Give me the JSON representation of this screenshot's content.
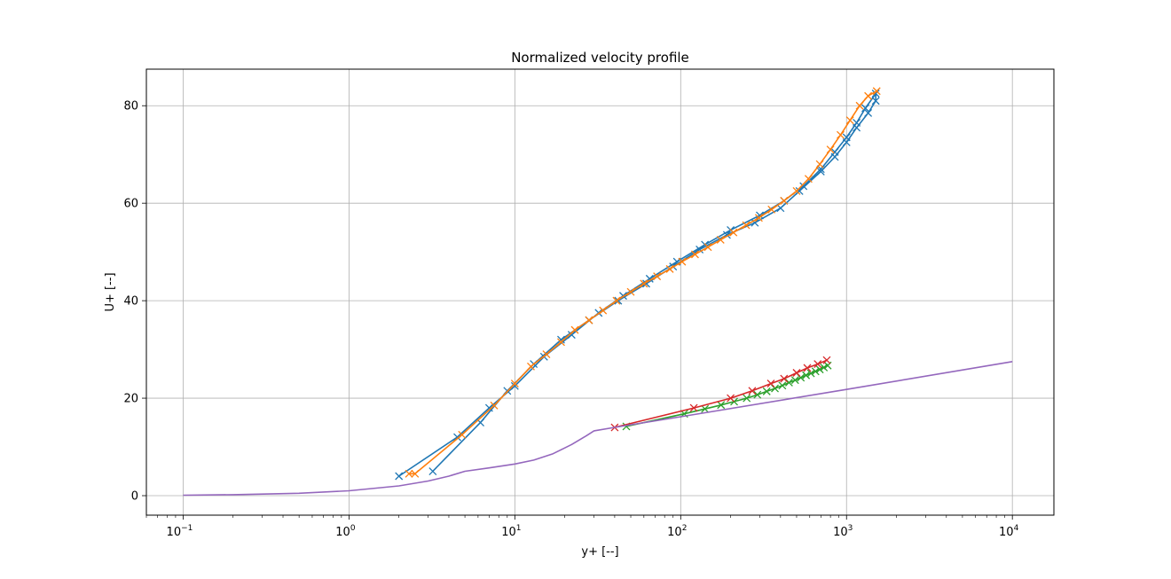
{
  "chart_data": {
    "type": "line",
    "title": "Normalized velocity profile",
    "xlabel": "y+ [--]",
    "ylabel": "U+ [--]",
    "xscale": "log",
    "xlim": [
      0.06,
      17800
    ],
    "ylim": [
      -4,
      87.5
    ],
    "grid": true,
    "x_ticks": [
      {
        "value": 0.1,
        "base": "10",
        "exp": "−1"
      },
      {
        "value": 1,
        "base": "10",
        "exp": "0"
      },
      {
        "value": 10,
        "base": "10",
        "exp": "1"
      },
      {
        "value": 100,
        "base": "10",
        "exp": "2"
      },
      {
        "value": 1000,
        "base": "10",
        "exp": "3"
      },
      {
        "value": 10000,
        "base": "10",
        "exp": "4"
      }
    ],
    "y_ticks": [
      {
        "value": 0,
        "label": "0"
      },
      {
        "value": 20,
        "label": "20"
      },
      {
        "value": 40,
        "label": "40"
      },
      {
        "value": 60,
        "label": "60"
      },
      {
        "value": 80,
        "label": "80"
      }
    ],
    "series": [
      {
        "color": "#1f77b4",
        "marker": "x",
        "points": [
          [
            2.0,
            4.0
          ],
          [
            4.5,
            12.0
          ],
          [
            7.0,
            18.0
          ],
          [
            10.0,
            22.5
          ],
          [
            15.0,
            28.5
          ],
          [
            22.0,
            33.0
          ],
          [
            32.0,
            37.5
          ],
          [
            45.0,
            41.0
          ],
          [
            65.0,
            44.5
          ],
          [
            95.0,
            48.0
          ],
          [
            140.0,
            51.5
          ],
          [
            200.0,
            54.5
          ],
          [
            300.0,
            57.5
          ],
          [
            420.0,
            60.5
          ],
          [
            550.0,
            63.5
          ],
          [
            700.0,
            67.0
          ],
          [
            850.0,
            70.5
          ],
          [
            1000.0,
            73.5
          ],
          [
            1150.0,
            76.5
          ],
          [
            1300.0,
            79.5
          ],
          [
            1500.0,
            82.5
          ],
          [
            1500.0,
            81.0
          ],
          [
            1350.0,
            78.5
          ],
          [
            1150.0,
            75.5
          ],
          [
            1000.0,
            72.5
          ],
          [
            850.0,
            69.5
          ],
          [
            700.0,
            66.5
          ],
          [
            520.0,
            62.5
          ],
          [
            400.0,
            59.0
          ],
          [
            280.0,
            56.0
          ],
          [
            190.0,
            53.5
          ],
          [
            130.0,
            50.5
          ],
          [
            90.0,
            47.0
          ],
          [
            62.0,
            43.5
          ],
          [
            42.0,
            40.0
          ],
          [
            28.0,
            36.0
          ],
          [
            19.0,
            32.0
          ],
          [
            13.0,
            27.0
          ],
          [
            9.0,
            21.5
          ],
          [
            6.2,
            15.0
          ],
          [
            3.2,
            5.0
          ]
        ]
      },
      {
        "color": "#ff7f0e",
        "marker": "x",
        "points": [
          [
            2.3,
            4.5
          ],
          [
            2.5,
            4.5
          ],
          [
            4.8,
            12.5
          ],
          [
            7.5,
            18.5
          ],
          [
            10.0,
            23.0
          ],
          [
            12.5,
            26.5
          ],
          [
            15.5,
            29.0
          ],
          [
            19.0,
            31.5
          ],
          [
            23.0,
            34.0
          ],
          [
            28.0,
            36.0
          ],
          [
            34.0,
            38.0
          ],
          [
            41.0,
            40.0
          ],
          [
            50.0,
            41.8
          ],
          [
            60.0,
            43.5
          ],
          [
            72.0,
            45.0
          ],
          [
            86.0,
            46.5
          ],
          [
            102.0,
            48.0
          ],
          [
            122.0,
            49.5
          ],
          [
            146.0,
            51.0
          ],
          [
            174.0,
            52.5
          ],
          [
            208.0,
            54.0
          ],
          [
            248.0,
            55.5
          ],
          [
            296.0,
            57.0
          ],
          [
            353.0,
            58.7
          ],
          [
            420.0,
            60.5
          ],
          [
            500.0,
            62.5
          ],
          [
            590.0,
            65.0
          ],
          [
            690.0,
            68.0
          ],
          [
            800.0,
            71.0
          ],
          [
            920.0,
            74.0
          ],
          [
            1050.0,
            77.0
          ],
          [
            1200.0,
            80.0
          ],
          [
            1350.0,
            82.0
          ],
          [
            1520.0,
            83.0
          ]
        ]
      },
      {
        "color": "#2ca02c",
        "marker": "x",
        "points": [
          [
            47.0,
            14.2
          ],
          [
            105.0,
            16.8
          ],
          [
            140.0,
            17.8
          ],
          [
            175.0,
            18.6
          ],
          [
            210.0,
            19.3
          ],
          [
            250.0,
            20.0
          ],
          [
            290.0,
            20.7
          ],
          [
            330.0,
            21.4
          ],
          [
            370.0,
            22.0
          ],
          [
            410.0,
            22.6
          ],
          [
            450.0,
            23.2
          ],
          [
            490.0,
            23.7
          ],
          [
            530.0,
            24.2
          ],
          [
            570.0,
            24.7
          ],
          [
            610.0,
            25.1
          ],
          [
            650.0,
            25.5
          ],
          [
            690.0,
            25.9
          ],
          [
            730.0,
            26.3
          ],
          [
            770.0,
            26.7
          ]
        ]
      },
      {
        "color": "#d62728",
        "marker": "x",
        "points": [
          [
            40.0,
            14.0
          ],
          [
            120.0,
            18.0
          ],
          [
            200.0,
            20.0
          ],
          [
            270.0,
            21.5
          ],
          [
            350.0,
            23.0
          ],
          [
            420.0,
            24.0
          ],
          [
            500.0,
            25.2
          ],
          [
            580.0,
            26.2
          ],
          [
            670.0,
            27.0
          ],
          [
            760.0,
            27.8
          ]
        ]
      },
      {
        "color": "#9467bd",
        "marker": "none",
        "points": [
          [
            0.1,
            0.1
          ],
          [
            0.2,
            0.2
          ],
          [
            0.5,
            0.5
          ],
          [
            1.0,
            1.0
          ],
          [
            2.0,
            2.0
          ],
          [
            3.0,
            3.0
          ],
          [
            4.0,
            4.0
          ],
          [
            5.0,
            5.0
          ],
          [
            7.0,
            5.7
          ],
          [
            10.0,
            6.5
          ],
          [
            13.0,
            7.3
          ],
          [
            17.0,
            8.6
          ],
          [
            22.0,
            10.5
          ],
          [
            27.0,
            12.3
          ],
          [
            30.0,
            13.3
          ],
          [
            40.0,
            14.0
          ],
          [
            100.0,
            16.2
          ],
          [
            1000.0,
            21.8
          ],
          [
            10000.0,
            27.5
          ]
        ]
      }
    ]
  }
}
